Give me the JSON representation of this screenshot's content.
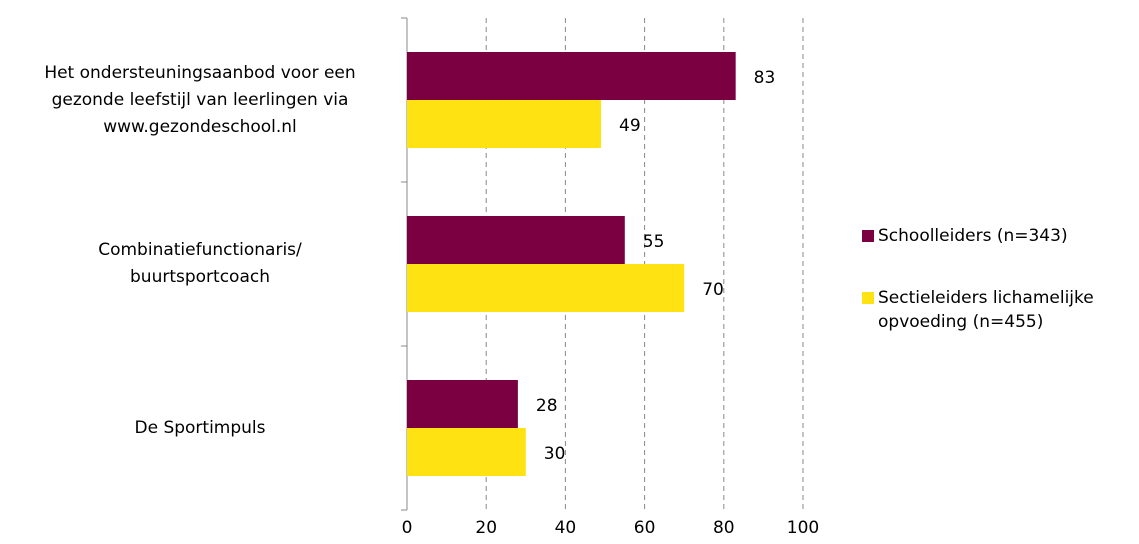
{
  "chart_data": {
    "type": "bar",
    "orientation": "horizontal",
    "categories": [
      [
        "Het ondersteuningsaanbod voor een",
        "gezonde leefstijl van leerlingen via",
        "www.gezondeschool.nl"
      ],
      [
        "Combinatiefunctionaris/",
        "buurtsportcoach"
      ],
      [
        "De Sportimpuls"
      ]
    ],
    "series": [
      {
        "name": "Schoolleiders (n=343)",
        "color": "#7b0041",
        "values": [
          83,
          55,
          28
        ]
      },
      {
        "name": "Sectieleiders lichamelijke opvoeding (n=455)",
        "color": "#ffe212",
        "values": [
          49,
          70,
          30
        ]
      }
    ],
    "xlim": [
      0,
      100
    ],
    "xticks": [
      0,
      20,
      40,
      60,
      80,
      100
    ],
    "grid": true,
    "legend": "right"
  }
}
